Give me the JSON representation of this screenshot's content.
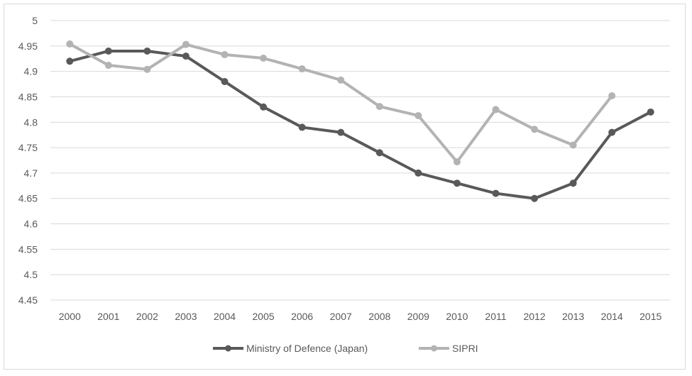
{
  "chart_data": {
    "type": "line",
    "title": "",
    "xlabel": "",
    "ylabel": "",
    "categories": [
      "2000",
      "2001",
      "2002",
      "2003",
      "2004",
      "2005",
      "2006",
      "2007",
      "2008",
      "2009",
      "2010",
      "2011",
      "2012",
      "2013",
      "2014",
      "2015"
    ],
    "ylim": [
      4.45,
      5
    ],
    "yticks": [
      "4.45",
      "4.5",
      "4.55",
      "4.6",
      "4.65",
      "4.7",
      "4.75",
      "4.8",
      "4.85",
      "4.9",
      "4.95",
      "5"
    ],
    "grid": true,
    "legend_position": "bottom",
    "series": [
      {
        "name": "Ministry of Defence (Japan)",
        "color": "#595959",
        "values": [
          4.92,
          4.94,
          4.94,
          4.93,
          4.88,
          4.83,
          4.79,
          4.78,
          4.74,
          4.7,
          4.68,
          4.66,
          4.65,
          4.68,
          4.78,
          4.82
        ]
      },
      {
        "name": "SIPRI",
        "color": "#b3b3b3",
        "values": [
          4.954,
          4.912,
          4.904,
          4.953,
          4.933,
          4.926,
          4.905,
          4.883,
          4.831,
          4.813,
          4.722,
          4.825,
          4.786,
          4.755,
          4.852,
          null
        ]
      }
    ]
  }
}
